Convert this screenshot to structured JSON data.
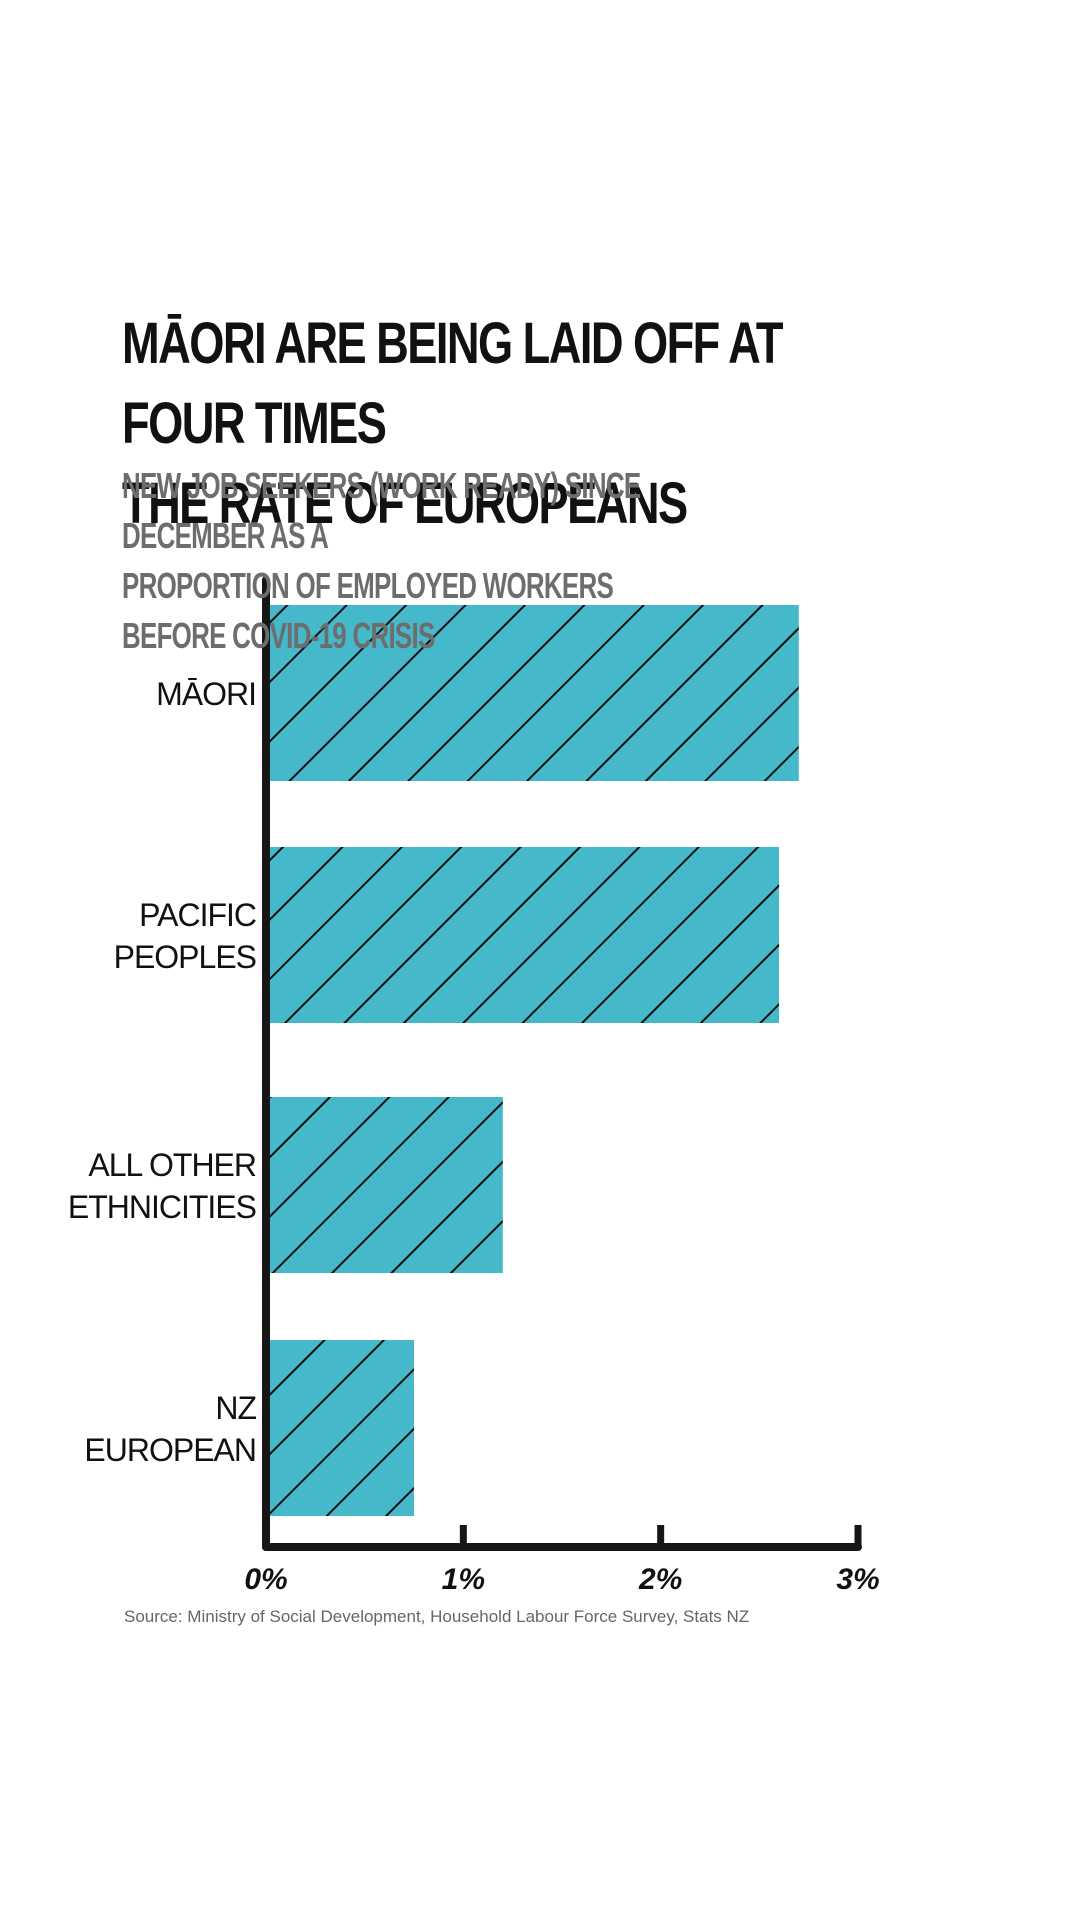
{
  "chart_data": {
    "type": "bar",
    "orientation": "horizontal",
    "title": "Māori are being laid off at four times\nthe rate of Europeans",
    "subtitle": "New job seekers (work ready) since December as a\nproportion of employed workers before Covid-19 crisis",
    "categories": [
      "Māori",
      "Pacific\nPeoples",
      "All other\nethnicities",
      "NZ\nEuropean"
    ],
    "values": [
      2.7,
      2.6,
      1.2,
      0.75
    ],
    "xlim": [
      0,
      3
    ],
    "x_ticks": [
      0,
      1,
      2,
      3
    ],
    "x_tick_labels": [
      "0%",
      "1%",
      "2%",
      "3%"
    ],
    "grid": false,
    "bar_color": "#45b8c9",
    "hatch_color": "#111111",
    "source": "Source: Ministry of Social Development, Household Labour Force Survey, Stats NZ"
  }
}
